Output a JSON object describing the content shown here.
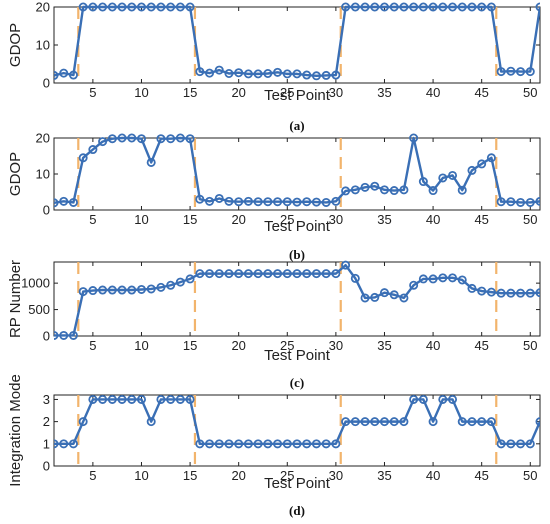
{
  "chart_data": [
    {
      "type": "line",
      "panel_label": "(a)",
      "xlabel": "Test Point",
      "ylabel": "GDOP",
      "xlim": [
        1,
        51
      ],
      "ylim": [
        0,
        20
      ],
      "xticks": [
        5,
        10,
        15,
        20,
        25,
        30,
        35,
        40,
        45,
        50
      ],
      "yticks": [
        0,
        10,
        20
      ],
      "vlines": [
        3.5,
        15.5,
        30.5,
        46.5
      ],
      "x": [
        1,
        2,
        3,
        4,
        5,
        6,
        7,
        8,
        9,
        10,
        11,
        12,
        13,
        14,
        15,
        16,
        17,
        18,
        19,
        20,
        21,
        22,
        23,
        24,
        25,
        26,
        27,
        28,
        29,
        30,
        31,
        32,
        33,
        34,
        35,
        36,
        37,
        38,
        39,
        40,
        41,
        42,
        43,
        44,
        45,
        46,
        47,
        48,
        49,
        50,
        51
      ],
      "values": [
        2,
        2.6,
        2.1,
        20,
        20,
        20,
        20,
        20,
        20,
        20,
        20,
        20,
        20,
        20,
        20,
        3,
        2.6,
        3.4,
        2.5,
        2.7,
        2.4,
        2.4,
        2.5,
        2.8,
        2.4,
        2.4,
        2.1,
        1.9,
        2,
        2.1,
        20,
        20,
        20,
        20,
        20,
        20,
        20,
        20,
        20,
        20,
        20,
        20,
        20,
        20,
        20,
        20,
        3,
        3.1,
        3,
        3,
        20
      ]
    },
    {
      "type": "line",
      "panel_label": "(b)",
      "xlabel": "Test Point",
      "ylabel": "GDOP",
      "xlim": [
        1,
        51
      ],
      "ylim": [
        0,
        20
      ],
      "xticks": [
        5,
        10,
        15,
        20,
        25,
        30,
        35,
        40,
        45,
        50
      ],
      "yticks": [
        0,
        10,
        20
      ],
      "vlines": [
        3.5,
        15.5,
        30.5,
        46.5
      ],
      "x": [
        1,
        2,
        3,
        4,
        5,
        6,
        7,
        8,
        9,
        10,
        11,
        12,
        13,
        14,
        15,
        16,
        17,
        18,
        19,
        20,
        21,
        22,
        23,
        24,
        25,
        26,
        27,
        28,
        29,
        30,
        31,
        32,
        33,
        34,
        35,
        36,
        37,
        38,
        39,
        40,
        41,
        42,
        43,
        44,
        45,
        46,
        47,
        48,
        49,
        50,
        51
      ],
      "values": [
        2,
        2.4,
        2.1,
        14.5,
        16.8,
        19,
        19.8,
        20,
        20,
        19.8,
        13.2,
        19.8,
        19.8,
        20,
        19.8,
        3,
        2.4,
        3.2,
        2.4,
        2.3,
        2.4,
        2.3,
        2.3,
        2.3,
        2.3,
        2.2,
        2.3,
        2.2,
        2.1,
        2.4,
        5.3,
        5.6,
        6.3,
        6.6,
        5.6,
        5.4,
        5.6,
        20,
        7.9,
        5.4,
        8.9,
        9.6,
        5.5,
        11,
        12.8,
        14.5,
        2.3,
        2.3,
        2.1,
        2.1,
        2.4
      ]
    },
    {
      "type": "line",
      "panel_label": "(c)",
      "xlabel": "Test Point",
      "ylabel": "RP Number",
      "xlim": [
        1,
        51
      ],
      "ylim": [
        0,
        1400
      ],
      "xticks": [
        5,
        10,
        15,
        20,
        25,
        30,
        35,
        40,
        45,
        50
      ],
      "yticks": [
        0,
        500,
        1000
      ],
      "vlines": [
        3.5,
        15.5,
        30.5,
        46.5
      ],
      "x": [
        1,
        2,
        3,
        4,
        5,
        6,
        7,
        8,
        9,
        10,
        11,
        12,
        13,
        14,
        15,
        16,
        17,
        18,
        19,
        20,
        21,
        22,
        23,
        24,
        25,
        26,
        27,
        28,
        29,
        30,
        31,
        32,
        33,
        34,
        35,
        36,
        37,
        38,
        39,
        40,
        41,
        42,
        43,
        44,
        45,
        46,
        47,
        48,
        49,
        50,
        51
      ],
      "values": [
        10,
        10,
        10,
        840,
        860,
        870,
        870,
        870,
        870,
        880,
        890,
        920,
        960,
        1020,
        1080,
        1180,
        1180,
        1180,
        1180,
        1180,
        1180,
        1180,
        1180,
        1180,
        1180,
        1180,
        1180,
        1180,
        1180,
        1180,
        1340,
        1090,
        720,
        730,
        820,
        780,
        720,
        960,
        1080,
        1080,
        1100,
        1100,
        1060,
        900,
        850,
        830,
        810,
        810,
        810,
        810,
        820
      ]
    },
    {
      "type": "line",
      "panel_label": "(d)",
      "xlabel": "Test Point",
      "ylabel": "Integration Mode",
      "xlim": [
        1,
        51
      ],
      "ylim": [
        0,
        3.2
      ],
      "xticks": [
        5,
        10,
        15,
        20,
        25,
        30,
        35,
        40,
        45,
        50
      ],
      "yticks": [
        0,
        1,
        2,
        3
      ],
      "vlines": [
        3.5,
        15.5,
        30.5,
        46.5
      ],
      "x": [
        1,
        2,
        3,
        4,
        5,
        6,
        7,
        8,
        9,
        10,
        11,
        12,
        13,
        14,
        15,
        16,
        17,
        18,
        19,
        20,
        21,
        22,
        23,
        24,
        25,
        26,
        27,
        28,
        29,
        30,
        31,
        32,
        33,
        34,
        35,
        36,
        37,
        38,
        39,
        40,
        41,
        42,
        43,
        44,
        45,
        46,
        47,
        48,
        49,
        50,
        51
      ],
      "values": [
        1,
        1,
        1,
        2,
        3,
        3,
        3,
        3,
        3,
        3,
        2,
        3,
        3,
        3,
        3,
        1,
        1,
        1,
        1,
        1,
        1,
        1,
        1,
        1,
        1,
        1,
        1,
        1,
        1,
        1,
        2,
        2,
        2,
        2,
        2,
        2,
        2,
        3,
        3,
        2,
        3,
        3,
        2,
        2,
        2,
        2,
        1,
        1,
        1,
        1,
        2
      ]
    }
  ],
  "style": {
    "line_color": "#3a6fb5",
    "vline_color": "#f2b46c"
  }
}
